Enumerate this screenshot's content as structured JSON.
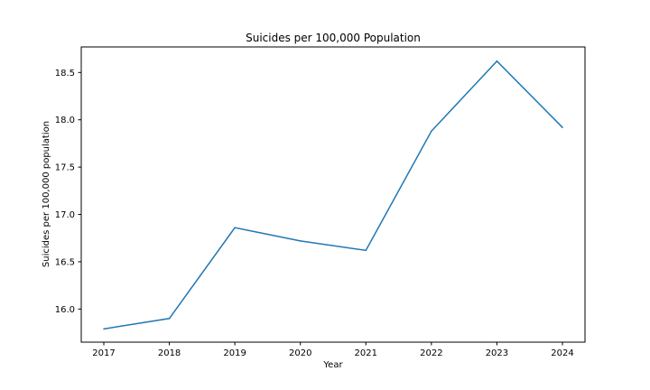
{
  "chart_data": {
    "type": "line",
    "title": "Suicides per 100,000 Population",
    "xlabel": "Year",
    "ylabel": "Suicides per 100,000 population",
    "x": [
      2017,
      2018,
      2019,
      2020,
      2021,
      2022,
      2023,
      2024
    ],
    "x_tick_labels": [
      "2017",
      "2018",
      "2019",
      "2020",
      "2021",
      "2022",
      "2023",
      "2024"
    ],
    "series": [
      {
        "values": [
          15.79,
          15.9,
          16.86,
          16.72,
          16.62,
          17.88,
          18.62,
          17.92
        ]
      }
    ],
    "ylim": [
      15.65,
      18.77
    ],
    "y_ticks": [
      16.0,
      16.5,
      17.0,
      17.5,
      18.0,
      18.5
    ],
    "y_tick_labels": [
      "16.0",
      "16.5",
      "17.0",
      "17.5",
      "18.0",
      "18.5"
    ],
    "grid": false,
    "colors": {
      "line": "#1f77b4",
      "axes": "#000000"
    }
  }
}
